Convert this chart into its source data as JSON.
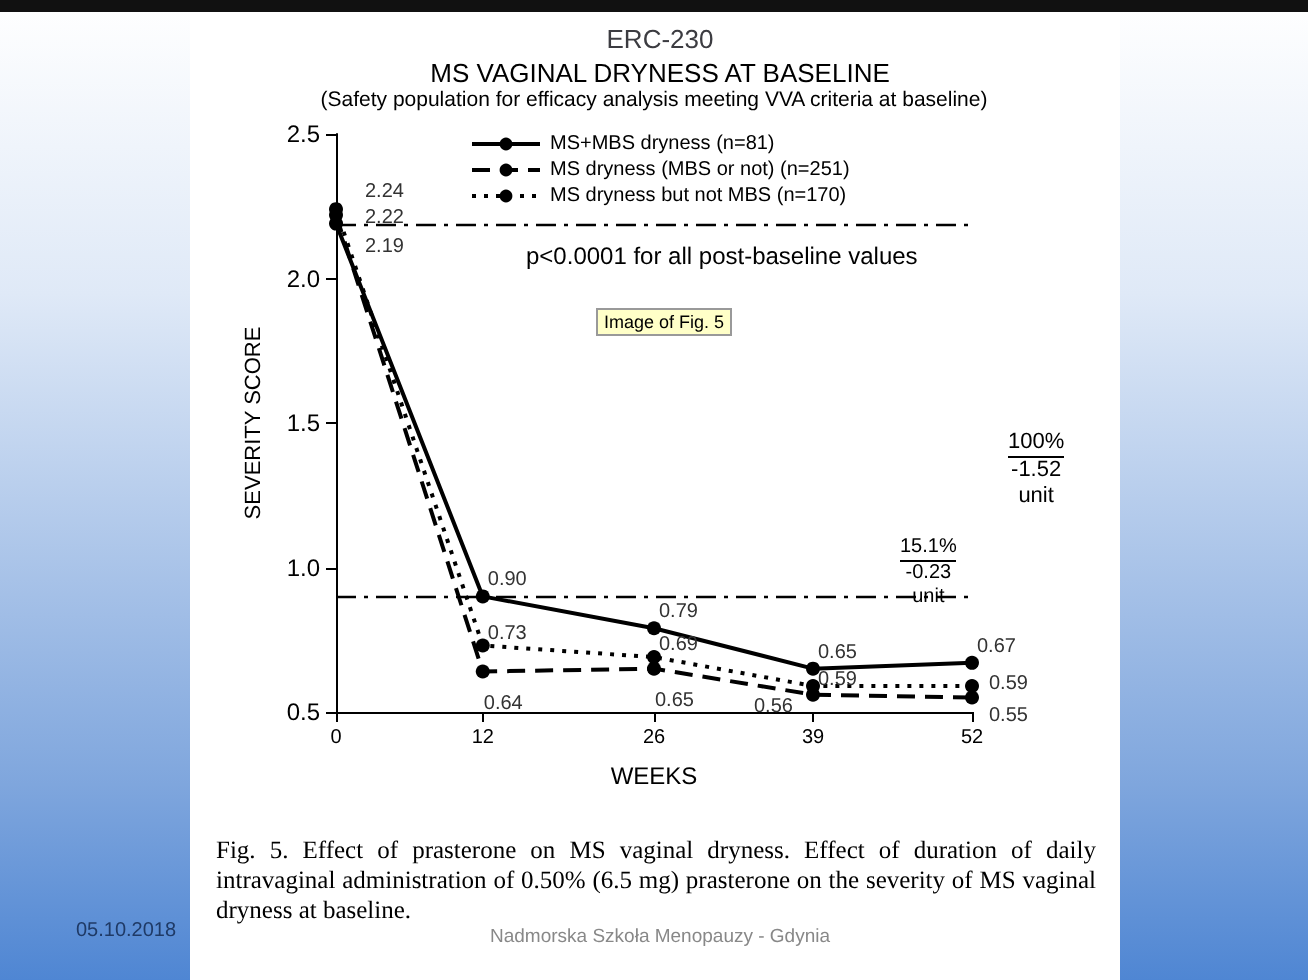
{
  "chart_data": {
    "type": "line",
    "title": "ERC-230",
    "subtitle": "MS VAGINAL DRYNESS AT BASELINE",
    "xlabel": "WEEKS",
    "ylabel": "SEVERITY SCORE",
    "x": [
      0,
      12,
      26,
      39,
      52
    ],
    "xlim": [
      0,
      52
    ],
    "xticks": [
      0,
      12,
      26,
      39,
      52
    ],
    "ylim": [
      0.5,
      2.5
    ],
    "yticks": [
      {
        "value": 0.5,
        "label": "0.5"
      },
      {
        "value": 1,
        "label": "1.0"
      },
      {
        "value": 1.5,
        "label": "1.5"
      },
      {
        "value": 2,
        "label": "2.0"
      },
      {
        "value": 2.5,
        "label": "2.5"
      }
    ],
    "series": [
      {
        "name": "MS+MBS dryness (n=81)",
        "color": "#000000",
        "line_style": "solid",
        "values": [
          2.19,
          0.9,
          0.79,
          0.65,
          0.67
        ],
        "value_labels": [
          "2.19",
          "0.90",
          "0.79",
          "0.65",
          "0.67"
        ]
      },
      {
        "name": "MS dryness (MBS or not) (n=251)",
        "color": "#000000",
        "line_style": "dashed",
        "values": [
          2.22,
          0.64,
          0.65,
          0.56,
          0.55
        ],
        "value_labels": [
          "2.22",
          "0.64",
          "0.65",
          "0.56",
          "0.55"
        ]
      },
      {
        "name": "MS dryness but not MBS (n=170)",
        "color": "#000000",
        "line_style": "dotted",
        "values": [
          2.24,
          0.73,
          0.69,
          0.59,
          0.59
        ],
        "value_labels": [
          "2.24",
          "0.73",
          "0.69",
          "0.59",
          "0.59"
        ]
      }
    ],
    "ref_lines": [
      {
        "axis": "y",
        "value": 2.19,
        "color": "#000000",
        "line_style": "dashed"
      },
      {
        "axis": "y",
        "value": 0.9,
        "color": "#000000",
        "line_style": "dashed"
      }
    ],
    "marker": "circle",
    "grid": false,
    "legend": "top",
    "annotations": [
      "(Safety population for efficacy analysis meeting VVA criteria at baseline)",
      "p<0.0001 for all post-baseline values",
      "100%\n-1.52\nunit",
      "15.1%\n-0.23\nunit",
      "Image of Fig. 5",
      "Fig. 5. Effect of prasterone on MS vaginal dryness. Effect of duration of daily intravaginal administration of 0.50% (6.5 mg) prasterone on the severity of MS vaginal dryness at baseline.",
      "05.10.2018",
      "Nadmorska Szkoła Menopauzy - Gdynia"
    ]
  }
}
